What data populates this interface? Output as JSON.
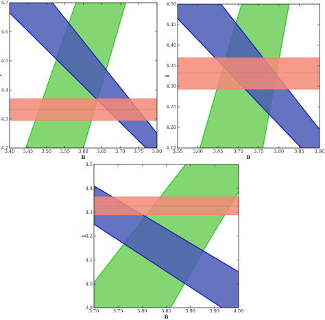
{
  "chart_data": [
    {
      "type": "area",
      "title": "",
      "xlabel": "B",
      "ylabel": "I",
      "xlim": [
        3.4,
        3.8
      ],
      "ylim": [
        4.2,
        4.7
      ],
      "xticks": [
        "3.40",
        "3.45",
        "3.50",
        "3.55",
        "3.60",
        "3.65",
        "3.70",
        "3.75",
        "3.80"
      ],
      "yticks": [
        "4.2",
        "4.3",
        "4.4",
        "4.5",
        "4.6",
        "4.7"
      ],
      "grid": false,
      "legend": "none",
      "series": [
        {
          "color": "#6fcf5a",
          "edge": "#22cc22",
          "polygon": [
            [
              3.444,
              4.2
            ],
            [
              3.58,
              4.7
            ],
            [
              3.715,
              4.7
            ],
            [
              3.6,
              4.2
            ]
          ]
        },
        {
          "color": "#4a5bb5",
          "edge": "#0a1ab8",
          "polygon": [
            [
              3.4,
              4.7
            ],
            [
              3.4,
              4.665
            ],
            [
              3.77,
              4.2
            ],
            [
              3.8,
              4.2
            ],
            [
              3.8,
              4.25
            ],
            [
              3.516,
              4.7
            ]
          ]
        },
        {
          "color": "#f58a78",
          "edge": "#f07a6a",
          "polygon": [
            [
              3.4,
              4.295
            ],
            [
              3.8,
              4.295
            ],
            [
              3.8,
              4.37
            ],
            [
              3.4,
              4.37
            ]
          ],
          "centerline": 4.333
        }
      ]
    },
    {
      "type": "area",
      "title": "",
      "xlabel": "B",
      "ylabel": "I",
      "xlim": [
        3.55,
        3.9
      ],
      "ylim": [
        4.15,
        4.5
      ],
      "xticks": [
        "3.55",
        "3.60",
        "3.65",
        "3.70",
        "3.75",
        "3.80",
        "3.85",
        "3.90"
      ],
      "yticks": [
        "4.15",
        "4.20",
        "4.25",
        "4.30",
        "4.35",
        "4.40",
        "4.45",
        "4.50"
      ],
      "grid": false,
      "legend": "none",
      "series": [
        {
          "color": "#6fcf5a",
          "edge": "#22cc22",
          "polygon": [
            [
              3.605,
              4.15
            ],
            [
              3.708,
              4.5
            ],
            [
              3.825,
              4.5
            ],
            [
              3.76,
              4.15
            ]
          ]
        },
        {
          "color": "#4a5bb5",
          "edge": "#0a1ab8",
          "polygon": [
            [
              3.55,
              4.5
            ],
            [
              3.55,
              4.465
            ],
            [
              3.855,
              4.15
            ],
            [
              3.9,
              4.15
            ],
            [
              3.9,
              4.195
            ],
            [
              3.657,
              4.5
            ]
          ]
        },
        {
          "color": "#f58a78",
          "edge": "#f07a6a",
          "polygon": [
            [
              3.55,
              4.293
            ],
            [
              3.9,
              4.293
            ],
            [
              3.9,
              4.37
            ],
            [
              3.55,
              4.37
            ]
          ],
          "centerline": 4.333
        }
      ]
    },
    {
      "type": "area",
      "title": "",
      "xlabel": "B",
      "ylabel": "I",
      "xlim": [
        3.7,
        4.0
      ],
      "ylim": [
        3.9,
        4.5
      ],
      "xticks": [
        "3.70",
        "3.75",
        "3.80",
        "3.85",
        "3.90",
        "3.95",
        "4.00"
      ],
      "yticks": [
        "3.9",
        "4.0",
        "4.1",
        "4.2",
        "4.3",
        "4.4",
        "4.5"
      ],
      "grid": false,
      "legend": "none",
      "series": [
        {
          "color": "#6fcf5a",
          "edge": "#22cc22",
          "polygon": [
            [
              3.7,
              3.9
            ],
            [
              3.7,
              4.005
            ],
            [
              3.89,
              4.5
            ],
            [
              4.0,
              4.5
            ],
            [
              4.0,
              4.385
            ],
            [
              3.94,
              4.185
            ],
            [
              3.859,
              3.9
            ]
          ]
        },
        {
          "color": "#4a5bb5",
          "edge": "#0a1ab8",
          "polygon": [
            [
              3.7,
              4.41
            ],
            [
              3.7,
              4.25
            ],
            [
              3.965,
              3.9
            ],
            [
              4.0,
              3.9
            ],
            [
              4.0,
              4.05
            ]
          ]
        },
        {
          "color": "#f58a78",
          "edge": "#f07a6a",
          "polygon": [
            [
              3.7,
              4.288
            ],
            [
              4.0,
              4.288
            ],
            [
              4.0,
              4.365
            ],
            [
              3.7,
              4.365
            ]
          ],
          "centerline": 4.325
        }
      ]
    }
  ]
}
